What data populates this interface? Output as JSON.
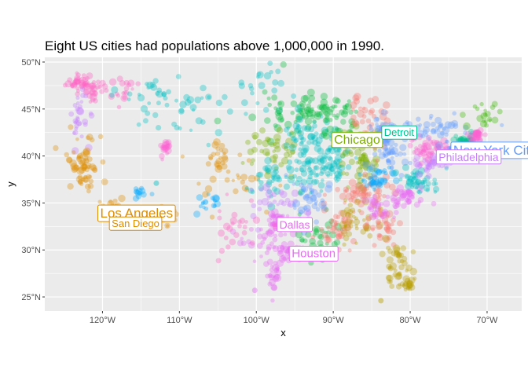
{
  "chart_data": {
    "type": "scatter",
    "title": "Eight US cities had populations above 1,000,000 in 1990.",
    "xlabel": "x",
    "ylabel": "y",
    "xlim": [
      -127.5,
      -65.5
    ],
    "ylim": [
      23.5,
      50.5
    ],
    "x_ticks": [
      -120,
      -110,
      -100,
      -90,
      -80,
      -70
    ],
    "x_tick_labels": [
      "120°W",
      "110°W",
      "100°W",
      "90°W",
      "80°W",
      "70°W"
    ],
    "y_ticks": [
      25,
      30,
      35,
      40,
      45,
      50
    ],
    "y_tick_labels": [
      "25°N",
      "30°N",
      "35°N",
      "40°N",
      "45°N",
      "50°N"
    ],
    "grid": true,
    "panel_background": "#ebebeb",
    "series_colors": [
      "#f8766d",
      "#e76bf3",
      "#00bfc4",
      "#619cff",
      "#7cae00",
      "#00ba38",
      "#c77cff",
      "#ff61c3",
      "#de8c00",
      "#00a9ff",
      "#b79f00",
      "#00c08b",
      "#39b600",
      "#fd61d1"
    ],
    "clusters": [
      {
        "cx": -123.0,
        "cy": 47.8,
        "sx": 0.9,
        "sy": 0.5,
        "n": 35,
        "color": "#ff61c3"
      },
      {
        "cx": -121.2,
        "cy": 47.0,
        "sx": 0.8,
        "sy": 0.5,
        "n": 20,
        "color": "#ff61c3"
      },
      {
        "cx": -123.0,
        "cy": 44.2,
        "sx": 0.6,
        "sy": 1.5,
        "n": 30,
        "color": "#c77cff"
      },
      {
        "cx": -122.6,
        "cy": 39.0,
        "sx": 1.0,
        "sy": 1.6,
        "n": 60,
        "color": "#de8c00"
      },
      {
        "cx": -118.3,
        "cy": 34.1,
        "sx": 0.8,
        "sy": 0.5,
        "n": 40,
        "color": "#de8c00"
      },
      {
        "cx": -117.0,
        "cy": 32.8,
        "sx": 0.4,
        "sy": 0.2,
        "n": 10,
        "color": "#de8c00"
      },
      {
        "cx": -117.5,
        "cy": 47.0,
        "sx": 1.2,
        "sy": 0.8,
        "n": 20,
        "color": "#ff61c3"
      },
      {
        "cx": -114.5,
        "cy": 46.5,
        "sx": 2.0,
        "sy": 1.2,
        "n": 25,
        "color": "#00bfc4"
      },
      {
        "cx": -112.0,
        "cy": 40.8,
        "sx": 0.3,
        "sy": 0.7,
        "n": 18,
        "color": "#fd61d1"
      },
      {
        "cx": -112.0,
        "cy": 33.4,
        "sx": 0.8,
        "sy": 0.6,
        "n": 28,
        "color": "#de8c00"
      },
      {
        "cx": -115.2,
        "cy": 36.1,
        "sx": 0.5,
        "sy": 0.4,
        "n": 10,
        "color": "#00a9ff"
      },
      {
        "cx": -105.0,
        "cy": 39.8,
        "sx": 0.6,
        "sy": 0.8,
        "n": 18,
        "color": "#de8c00"
      },
      {
        "cx": -106.6,
        "cy": 35.0,
        "sx": 1.2,
        "sy": 0.8,
        "n": 15,
        "color": "#00a9ff"
      },
      {
        "cx": -104.0,
        "cy": 38.0,
        "sx": 3.0,
        "sy": 1.5,
        "n": 25,
        "color": "#de8c00"
      },
      {
        "cx": -108.0,
        "cy": 44.5,
        "sx": 3.0,
        "sy": 1.5,
        "n": 25,
        "color": "#00bfc4"
      },
      {
        "cx": -100.0,
        "cy": 47.0,
        "sx": 3.0,
        "sy": 1.2,
        "n": 25,
        "color": "#00bfc4"
      },
      {
        "cx": -97.0,
        "cy": 45.0,
        "sx": 2.0,
        "sy": 1.5,
        "n": 30,
        "color": "#00ba38"
      },
      {
        "cx": -93.5,
        "cy": 44.8,
        "sx": 1.5,
        "sy": 1.0,
        "n": 40,
        "color": "#00ba38"
      },
      {
        "cx": -98.0,
        "cy": 40.5,
        "sx": 2.2,
        "sy": 1.3,
        "n": 45,
        "color": "#7cae00"
      },
      {
        "cx": -98.0,
        "cy": 37.5,
        "sx": 2.0,
        "sy": 1.0,
        "n": 35,
        "color": "#00bfc4"
      },
      {
        "cx": -97.5,
        "cy": 35.5,
        "sx": 2.0,
        "sy": 1.0,
        "n": 30,
        "color": "#c77cff"
      },
      {
        "cx": -97.3,
        "cy": 32.8,
        "sx": 0.9,
        "sy": 0.6,
        "n": 35,
        "color": "#e76bf3"
      },
      {
        "cx": -95.4,
        "cy": 29.8,
        "sx": 0.8,
        "sy": 0.5,
        "n": 35,
        "color": "#e76bf3"
      },
      {
        "cx": -99.0,
        "cy": 30.5,
        "sx": 1.8,
        "sy": 1.2,
        "n": 30,
        "color": "#e76bf3"
      },
      {
        "cx": -97.8,
        "cy": 27.2,
        "sx": 0.6,
        "sy": 0.8,
        "n": 20,
        "color": "#e76bf3"
      },
      {
        "cx": -102.5,
        "cy": 32.5,
        "sx": 2.2,
        "sy": 1.5,
        "n": 25,
        "color": "#ff61c3"
      },
      {
        "cx": -92.0,
        "cy": 31.5,
        "sx": 1.5,
        "sy": 1.3,
        "n": 40,
        "color": "#00ba38"
      },
      {
        "cx": -89.5,
        "cy": 32.5,
        "sx": 1.0,
        "sy": 1.5,
        "n": 40,
        "color": "#f8766d"
      },
      {
        "cx": -93.0,
        "cy": 35.0,
        "sx": 1.5,
        "sy": 1.2,
        "n": 40,
        "color": "#619cff"
      },
      {
        "cx": -92.5,
        "cy": 38.5,
        "sx": 1.8,
        "sy": 1.1,
        "n": 50,
        "color": "#00bfc4"
      },
      {
        "cx": -93.5,
        "cy": 42.0,
        "sx": 1.8,
        "sy": 1.1,
        "n": 50,
        "color": "#00bfc4"
      },
      {
        "cx": -89.5,
        "cy": 40.0,
        "sx": 1.2,
        "sy": 1.6,
        "n": 55,
        "color": "#00bfc4"
      },
      {
        "cx": -86.2,
        "cy": 40.0,
        "sx": 1.0,
        "sy": 1.4,
        "n": 60,
        "color": "#7cae00"
      },
      {
        "cx": -87.8,
        "cy": 41.8,
        "sx": 0.6,
        "sy": 0.4,
        "n": 30,
        "color": "#7cae00"
      },
      {
        "cx": -89.5,
        "cy": 44.0,
        "sx": 1.3,
        "sy": 1.2,
        "n": 40,
        "color": "#00ba38"
      },
      {
        "cx": -85.0,
        "cy": 43.5,
        "sx": 1.3,
        "sy": 1.5,
        "n": 45,
        "color": "#f8766d"
      },
      {
        "cx": -82.8,
        "cy": 40.5,
        "sx": 1.0,
        "sy": 1.2,
        "n": 50,
        "color": "#619cff"
      },
      {
        "cx": -86.0,
        "cy": 36.0,
        "sx": 1.3,
        "sy": 1.0,
        "n": 45,
        "color": "#f8766d"
      },
      {
        "cx": -84.5,
        "cy": 37.7,
        "sx": 1.2,
        "sy": 0.8,
        "n": 35,
        "color": "#00a9ff"
      },
      {
        "cx": -86.5,
        "cy": 33.0,
        "sx": 1.3,
        "sy": 1.2,
        "n": 40,
        "color": "#b79f00"
      },
      {
        "cx": -83.5,
        "cy": 33.0,
        "sx": 1.2,
        "sy": 1.3,
        "n": 45,
        "color": "#f8766d"
      },
      {
        "cx": -81.5,
        "cy": 28.0,
        "sx": 0.8,
        "sy": 1.5,
        "n": 45,
        "color": "#b79f00"
      },
      {
        "cx": -80.3,
        "cy": 26.3,
        "sx": 0.3,
        "sy": 0.4,
        "n": 15,
        "color": "#b79f00"
      },
      {
        "cx": -80.5,
        "cy": 35.5,
        "sx": 1.3,
        "sy": 0.7,
        "n": 40,
        "color": "#e76bf3"
      },
      {
        "cx": -79.0,
        "cy": 37.3,
        "sx": 1.5,
        "sy": 0.8,
        "n": 45,
        "color": "#00bfc4"
      },
      {
        "cx": -77.5,
        "cy": 39.2,
        "sx": 0.9,
        "sy": 0.5,
        "n": 30,
        "color": "#c77cff"
      },
      {
        "cx": -77.5,
        "cy": 40.9,
        "sx": 1.3,
        "sy": 0.6,
        "n": 45,
        "color": "#fd61d1"
      },
      {
        "cx": -75.2,
        "cy": 40.0,
        "sx": 0.5,
        "sy": 0.4,
        "n": 30,
        "color": "#c77cff"
      },
      {
        "cx": -76.5,
        "cy": 42.8,
        "sx": 2.2,
        "sy": 0.6,
        "n": 45,
        "color": "#619cff"
      },
      {
        "cx": -74.0,
        "cy": 40.8,
        "sx": 0.5,
        "sy": 0.3,
        "n": 45,
        "color": "#619cff"
      },
      {
        "cx": -72.8,
        "cy": 41.6,
        "sx": 0.6,
        "sy": 0.3,
        "n": 30,
        "color": "#00c08b"
      },
      {
        "cx": -71.3,
        "cy": 42.2,
        "sx": 0.5,
        "sy": 0.4,
        "n": 35,
        "color": "#fd61d1"
      },
      {
        "cx": -70.0,
        "cy": 44.5,
        "sx": 1.4,
        "sy": 1.0,
        "n": 20,
        "color": "#39b600"
      },
      {
        "cx": -83.7,
        "cy": 42.5,
        "sx": 0.8,
        "sy": 0.6,
        "n": 35,
        "color": "#619cff"
      },
      {
        "cx": -84.0,
        "cy": 34.5,
        "sx": 0.8,
        "sy": 0.5,
        "n": 25,
        "color": "#e76bf3"
      }
    ],
    "points": [
      {
        "x": -122.1,
        "y": 39.5,
        "color": "#de8c00"
      },
      {
        "x": -121.0,
        "y": 38.5,
        "color": "#de8c00"
      },
      {
        "x": -104.8,
        "y": 38.8,
        "color": "#de8c00"
      },
      {
        "x": -83.8,
        "y": 24.6,
        "color": "#b79f00"
      },
      {
        "x": -100.2,
        "y": 25.7,
        "color": "#e76bf3"
      },
      {
        "x": -97.4,
        "y": 27.8,
        "color": "#e76bf3"
      },
      {
        "x": -113.0,
        "y": 37.1,
        "color": "#00bfc4"
      },
      {
        "x": -111.9,
        "y": 33.6,
        "color": "#de8c00"
      },
      {
        "x": -115.6,
        "y": 36.2,
        "color": "#00a9ff"
      },
      {
        "x": -112.0,
        "y": 46.6,
        "color": "#00bfc4"
      },
      {
        "x": -106.6,
        "y": 35.1,
        "color": "#00a9ff"
      },
      {
        "x": -90.2,
        "y": 38.6,
        "color": "#00bfc4"
      },
      {
        "x": -71.1,
        "y": 42.4,
        "color": "#fd61d1"
      }
    ],
    "labels": [
      {
        "text": "Los Angeles",
        "x": -118.2,
        "y": 34.05,
        "lx": -120.3,
        "ly": 33.9,
        "color": "#de8c00",
        "size": 17
      },
      {
        "text": "San Diego",
        "x": -117.2,
        "y": 32.7,
        "lx": -118.8,
        "ly": 32.8,
        "color": "#de8c00",
        "size": 13
      },
      {
        "text": "Chicago",
        "x": -87.6,
        "y": 41.9,
        "lx": -89.9,
        "ly": 41.7,
        "color": "#7cae00",
        "size": 16
      },
      {
        "text": "Detroit",
        "x": -83.0,
        "y": 42.3,
        "lx": -83.4,
        "ly": 42.5,
        "color": "#00c08b",
        "size": 13
      },
      {
        "text": "New York City",
        "x": -73.9,
        "y": 40.7,
        "lx": -74.4,
        "ly": 40.6,
        "color": "#619cff",
        "size": 17
      },
      {
        "text": "Philadelphia",
        "x": -75.2,
        "y": 40.0,
        "lx": -76.3,
        "ly": 39.9,
        "color": "#c77cff",
        "size": 14
      },
      {
        "text": "Dallas",
        "x": -96.8,
        "y": 32.8,
        "lx": -97.0,
        "ly": 32.7,
        "color": "#e76bf3",
        "size": 14
      },
      {
        "text": "Houston",
        "x": -95.4,
        "y": 29.8,
        "lx": -95.4,
        "ly": 29.6,
        "color": "#e76bf3",
        "size": 15
      }
    ]
  }
}
